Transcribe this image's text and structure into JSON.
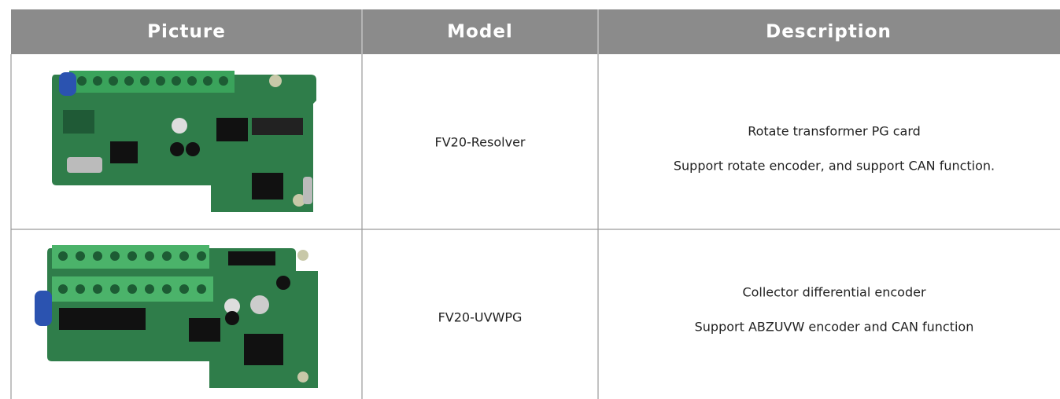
{
  "table": {
    "headers": [
      "Picture",
      "Model",
      "Description"
    ],
    "rows": [
      {
        "model": "FV20-Resolver",
        "description": [
          "Rotate transformer PG card",
          "Support rotate encoder, and support CAN function."
        ]
      },
      {
        "model": "FV20-UVWPG",
        "description": [
          "Collector differential encoder",
          "Support ABZUVW encoder and CAN function"
        ]
      }
    ]
  }
}
